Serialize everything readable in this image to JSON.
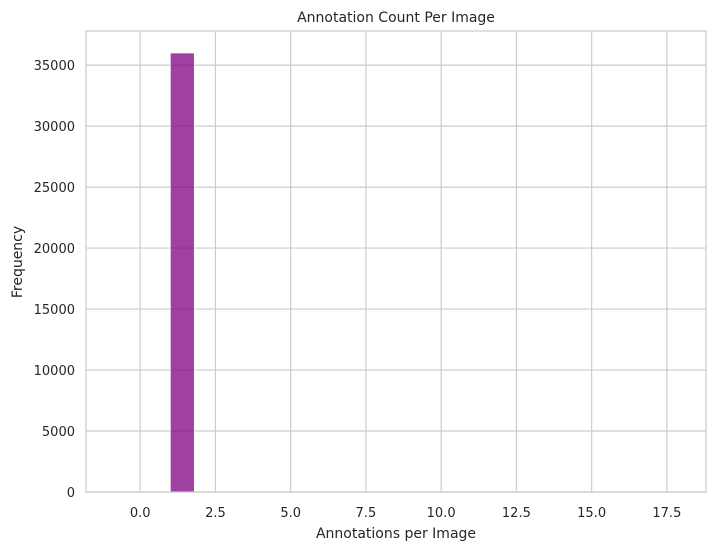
{
  "chart_data": {
    "type": "bar",
    "title": "Annotation Count Per Image",
    "xlabel": "Annotations per Image",
    "ylabel": "Frequency",
    "xlim": [
      -1.8,
      18.8
    ],
    "ylim": [
      0,
      37800
    ],
    "xticks": [
      0.0,
      2.5,
      5.0,
      7.5,
      10.0,
      12.5,
      15.0,
      17.5
    ],
    "xtick_labels": [
      "0.0",
      "2.5",
      "5.0",
      "7.5",
      "10.0",
      "12.5",
      "15.0",
      "17.5"
    ],
    "yticks": [
      0,
      5000,
      10000,
      15000,
      20000,
      25000,
      30000,
      35000
    ],
    "ytick_labels": [
      "0",
      "5000",
      "10000",
      "15000",
      "20000",
      "25000",
      "30000",
      "35000"
    ],
    "grid": true,
    "bars": [
      {
        "x_start": 1.0,
        "x_end": 1.8,
        "value": 36000
      }
    ],
    "bar_color": "#800080"
  }
}
